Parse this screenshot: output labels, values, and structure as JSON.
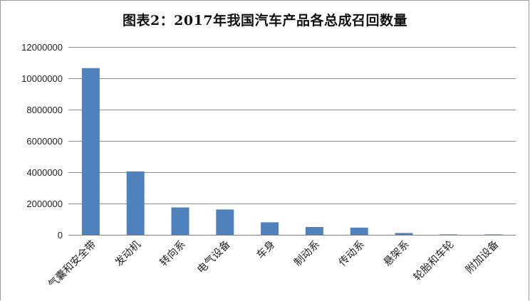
{
  "chart_data": {
    "type": "bar",
    "title": "图表2：2017年我国汽车产品各总成召回数量",
    "xlabel": "",
    "ylabel": "",
    "categories": [
      "气囊和安全带",
      "发动机",
      "转向系",
      "电气设备",
      "车身",
      "制动系",
      "传动系",
      "悬架系",
      "轮胎和车轮",
      "附加设备"
    ],
    "values": [
      10650000,
      4050000,
      1750000,
      1620000,
      800000,
      500000,
      460000,
      120000,
      10000,
      5000
    ],
    "ylim": [
      0,
      12000000
    ],
    "yticks": [
      0,
      2000000,
      4000000,
      6000000,
      8000000,
      10000000,
      12000000
    ],
    "ytick_labels": [
      "0",
      "2000000",
      "4000000",
      "6000000",
      "8000000",
      "10000000",
      "12000000"
    ],
    "grid": true,
    "legend": "none",
    "bar_color": "#4F81BD",
    "grid_color": "#8c8c8c"
  }
}
